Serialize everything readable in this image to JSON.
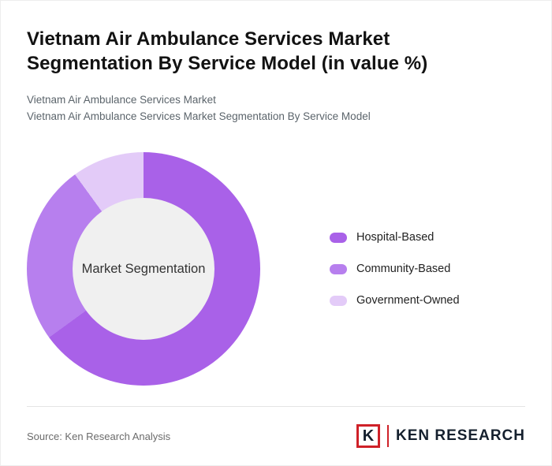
{
  "header": {
    "title_line1": "Vietnam Air Ambulance Services Market",
    "title_line2": "Segmentation By Service Model (in value %)",
    "subtitle_line1": "Vietnam Air Ambulance Services Market",
    "subtitle_line2": "Vietnam Air Ambulance Services Market Segmentation By Service Model"
  },
  "chart_data": {
    "type": "pie",
    "subtype": "donut",
    "title": "Vietnam Air Ambulance Services Market Segmentation By Service Model (in value %)",
    "center_label": "Market Segmentation",
    "categories": [
      "Hospital-Based",
      "Community-Based",
      "Government-Owned"
    ],
    "values": [
      65,
      25,
      10
    ],
    "unit": "value %",
    "colors": [
      "#a961e8",
      "#b77fee",
      "#e3cbf8"
    ],
    "center_color": "#f0f0f0",
    "start_angle_deg": 0,
    "direction": "clockwise",
    "inner_radius_ratio": 0.61,
    "legend_position": "right"
  },
  "footer": {
    "source": "Source: Ken Research Analysis",
    "logo_letter": "K",
    "logo_text": "KEN RESEARCH",
    "logo_accent_color": "#cf2128"
  }
}
